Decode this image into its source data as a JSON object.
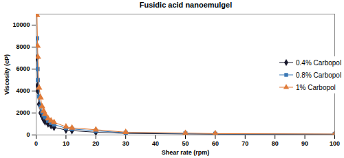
{
  "chart_data": {
    "type": "line",
    "title": "Fusidic acid nanoemulgel",
    "x_label": "Shear rate (rpm)",
    "y_label": "Viscosity (cP)",
    "x": [
      0.3,
      0.5,
      0.6,
      1,
      1.5,
      2,
      2.5,
      3,
      4,
      5,
      6,
      10,
      12,
      20,
      30,
      50,
      60,
      100
    ],
    "series": [
      {
        "name": "0.4% Carbopol",
        "color": "#1a1a2e",
        "marker": "diamond",
        "values": [
          7000,
          4500,
          4000,
          2800,
          2000,
          1700,
          1400,
          1200,
          1000,
          850,
          700,
          450,
          400,
          250,
          150,
          100,
          80,
          60
        ]
      },
      {
        "name": "0.8% Carbopol",
        "color": "#3a78b5",
        "marker": "square",
        "values": [
          8800,
          6000,
          5000,
          3500,
          2600,
          2100,
          1800,
          1600,
          1300,
          1100,
          950,
          620,
          550,
          380,
          210,
          140,
          110,
          80
        ]
      },
      {
        "name": "1% Carbopol",
        "color": "#e07b39",
        "marker": "triangle",
        "values": [
          10900,
          8100,
          7100,
          4300,
          3400,
          2600,
          2200,
          1900,
          1500,
          1300,
          1150,
          750,
          650,
          480,
          260,
          170,
          130,
          90
        ]
      }
    ],
    "xlim": [
      0,
      100
    ],
    "xticks": [
      0,
      10,
      20,
      30,
      40,
      50,
      60,
      70,
      80,
      90,
      100
    ],
    "ylim": [
      0,
      11000
    ],
    "yticks": [
      0,
      2000,
      4000,
      6000,
      8000,
      10000
    ],
    "grid": false,
    "legend": "right"
  }
}
